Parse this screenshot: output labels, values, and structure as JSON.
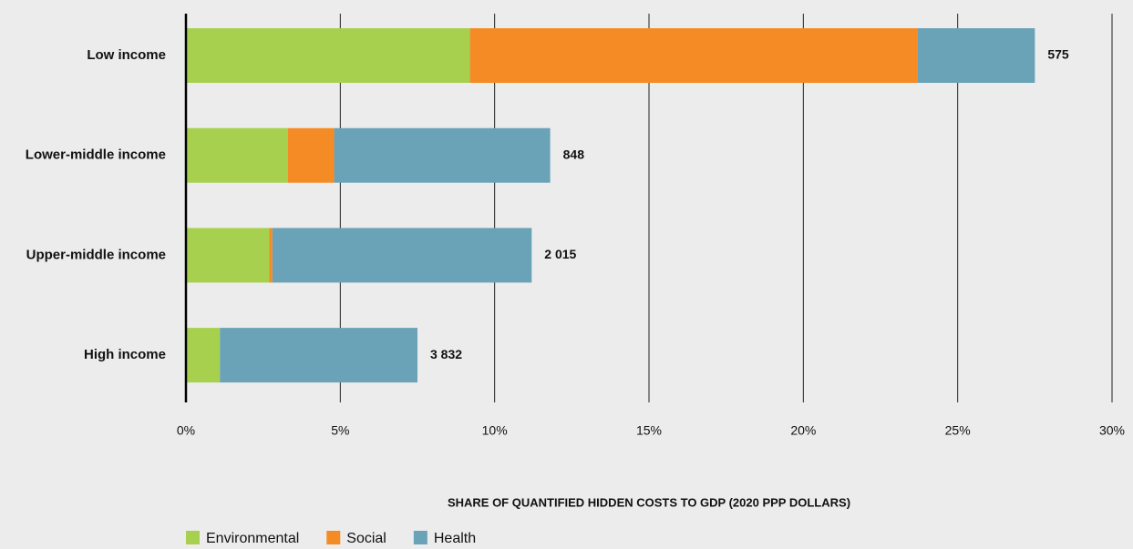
{
  "chart_data": {
    "type": "stacked_barh",
    "categories": [
      "Low income",
      "Lower-middle income",
      "Upper-middle income",
      "High income"
    ],
    "series": [
      {
        "name": "Environmental",
        "color": "#a8d04f",
        "values": [
          9.2,
          3.3,
          2.7,
          1.1
        ]
      },
      {
        "name": "Social",
        "color": "#f58b25",
        "values": [
          14.5,
          1.5,
          0.1,
          0
        ]
      },
      {
        "name": "Health",
        "color": "#6aa3b8",
        "values": [
          3.8,
          7.0,
          8.4,
          6.4
        ]
      }
    ],
    "end_labels": [
      "575",
      "848",
      "2 015",
      "3 832"
    ],
    "xlim": [
      0,
      30
    ],
    "xticks": [
      {
        "value": 0,
        "label": "0%"
      },
      {
        "value": 5,
        "label": "5%"
      },
      {
        "value": 10,
        "label": "10%"
      },
      {
        "value": 15,
        "label": "15%"
      },
      {
        "value": 20,
        "label": "20%"
      },
      {
        "value": 25,
        "label": "25%"
      },
      {
        "value": 30,
        "label": "30%"
      }
    ],
    "xlabel": "SHARE OF QUANTIFIED HIDDEN COSTS TO GDP (2020 PPP DOLLARS)",
    "grid": true,
    "legend": "bottom-left"
  }
}
